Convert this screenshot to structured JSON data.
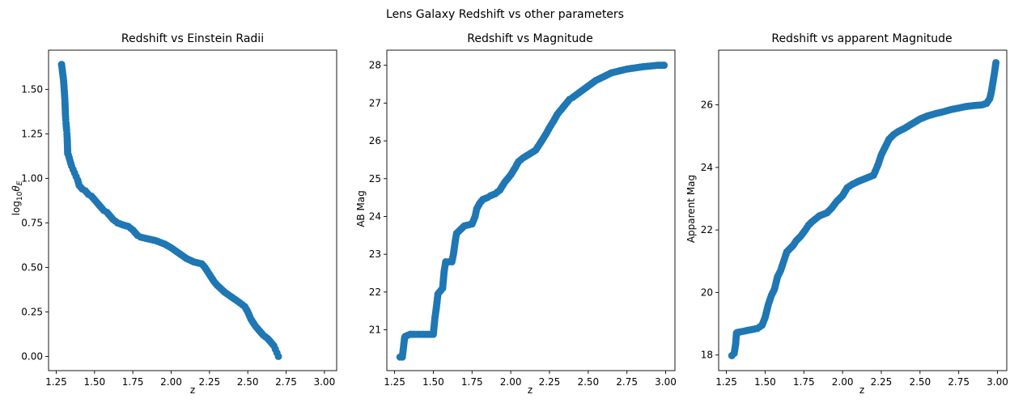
{
  "figure": {
    "suptitle": "Lens Galaxy Redshift vs other parameters",
    "marker_color": "#1f77b4"
  },
  "chart_data": [
    {
      "type": "scatter",
      "title": "Redshift vs Einstein Radii",
      "xlabel": "z",
      "ylabel": "log10θE",
      "ylabel_parts": {
        "base": "log",
        "sub": "10",
        "sym": "θ",
        "symsub": "E"
      },
      "xlim": [
        1.2,
        3.08
      ],
      "ylim": [
        -0.08,
        1.72
      ],
      "xticks": [
        "1.25",
        "1.50",
        "1.75",
        "2.00",
        "2.25",
        "2.50",
        "2.75",
        "3.00"
      ],
      "yticks": [
        "0.00",
        "0.25",
        "0.50",
        "0.75",
        "1.00",
        "1.25",
        "1.50"
      ],
      "grid": false,
      "x": [
        1.285,
        1.298,
        1.306,
        1.308,
        1.31,
        1.312,
        1.314,
        1.318,
        1.32,
        1.322,
        1.325,
        1.33,
        1.34,
        1.35,
        1.36,
        1.37,
        1.38,
        1.39,
        1.4,
        1.42,
        1.44,
        1.46,
        1.48,
        1.5,
        1.52,
        1.54,
        1.56,
        1.58,
        1.6,
        1.62,
        1.65,
        1.68,
        1.72,
        1.75,
        1.78,
        1.8,
        1.85,
        1.9,
        1.93,
        1.96,
        2.0,
        2.05,
        2.1,
        2.15,
        2.2,
        2.22,
        2.25,
        2.28,
        2.3,
        2.35,
        2.4,
        2.45,
        2.48,
        2.5,
        2.52,
        2.55,
        2.58,
        2.6,
        2.63,
        2.65,
        2.67,
        2.68,
        2.69,
        2.7
      ],
      "y": [
        1.64,
        1.55,
        1.45,
        1.41,
        1.36,
        1.33,
        1.31,
        1.27,
        1.25,
        1.22,
        1.14,
        1.13,
        1.1,
        1.07,
        1.05,
        1.03,
        1.01,
        0.99,
        0.96,
        0.94,
        0.93,
        0.91,
        0.9,
        0.88,
        0.86,
        0.84,
        0.82,
        0.81,
        0.79,
        0.77,
        0.75,
        0.74,
        0.73,
        0.71,
        0.68,
        0.67,
        0.66,
        0.65,
        0.64,
        0.63,
        0.61,
        0.58,
        0.55,
        0.53,
        0.52,
        0.5,
        0.46,
        0.42,
        0.4,
        0.36,
        0.33,
        0.3,
        0.28,
        0.25,
        0.21,
        0.17,
        0.14,
        0.12,
        0.1,
        0.08,
        0.06,
        0.04,
        0.02,
        0.0
      ]
    },
    {
      "type": "scatter",
      "title": "Redshift vs Magnitude",
      "xlabel": "z",
      "ylabel": "AB Mag",
      "xlim": [
        1.2,
        3.06
      ],
      "ylim": [
        19.92,
        28.4
      ],
      "xticks": [
        "1.25",
        "1.50",
        "1.75",
        "2.00",
        "2.25",
        "2.50",
        "2.75",
        "3.00"
      ],
      "yticks": [
        "21",
        "22",
        "23",
        "24",
        "25",
        "26",
        "27",
        "28"
      ],
      "grid": false,
      "x": [
        1.285,
        1.3,
        1.315,
        1.32,
        1.35,
        1.38,
        1.4,
        1.45,
        1.5,
        1.51,
        1.52,
        1.53,
        1.54,
        1.55,
        1.56,
        1.57,
        1.58,
        1.6,
        1.62,
        1.63,
        1.64,
        1.65,
        1.7,
        1.75,
        1.77,
        1.78,
        1.8,
        1.82,
        1.85,
        1.87,
        1.9,
        1.93,
        1.96,
        2.0,
        2.03,
        2.05,
        2.08,
        2.12,
        2.16,
        2.2,
        2.23,
        2.25,
        2.28,
        2.3,
        2.33,
        2.35,
        2.38,
        2.4,
        2.45,
        2.5,
        2.55,
        2.6,
        2.65,
        2.7,
        2.75,
        2.8,
        2.85,
        2.9,
        2.95,
        2.99
      ],
      "y": [
        20.28,
        20.28,
        20.8,
        20.83,
        20.88,
        20.88,
        20.88,
        20.88,
        20.88,
        21.3,
        21.6,
        21.95,
        22.0,
        22.05,
        22.1,
        22.55,
        22.8,
        22.8,
        22.8,
        23.0,
        23.3,
        23.55,
        23.75,
        23.8,
        24.0,
        24.2,
        24.35,
        24.45,
        24.5,
        24.55,
        24.6,
        24.7,
        24.9,
        25.1,
        25.3,
        25.45,
        25.55,
        25.65,
        25.75,
        26.0,
        26.2,
        26.35,
        26.55,
        26.7,
        26.85,
        26.95,
        27.1,
        27.15,
        27.3,
        27.45,
        27.6,
        27.7,
        27.8,
        27.85,
        27.9,
        27.93,
        27.96,
        27.98,
        28.0,
        28.0
      ]
    },
    {
      "type": "scatter",
      "title": "Redshift vs apparent Magnitude",
      "xlabel": "z",
      "ylabel": "Apparent Mag",
      "xlim": [
        1.2,
        3.06
      ],
      "ylim": [
        17.5,
        27.75
      ],
      "xticks": [
        "1.25",
        "1.50",
        "1.75",
        "2.00",
        "2.25",
        "2.50",
        "2.75",
        "3.00"
      ],
      "yticks": [
        "18",
        "20",
        "22",
        "24",
        "26"
      ],
      "grid": false,
      "x": [
        1.285,
        1.3,
        1.31,
        1.315,
        1.32,
        1.35,
        1.4,
        1.45,
        1.48,
        1.5,
        1.52,
        1.54,
        1.56,
        1.58,
        1.6,
        1.62,
        1.64,
        1.66,
        1.68,
        1.7,
        1.73,
        1.76,
        1.78,
        1.8,
        1.85,
        1.9,
        1.93,
        1.96,
        2.0,
        2.03,
        2.06,
        2.1,
        2.15,
        2.2,
        2.23,
        2.25,
        2.28,
        2.3,
        2.33,
        2.36,
        2.4,
        2.45,
        2.5,
        2.55,
        2.6,
        2.65,
        2.7,
        2.75,
        2.8,
        2.85,
        2.9,
        2.93,
        2.95,
        2.96,
        2.97,
        2.98,
        2.99
      ],
      "y": [
        17.98,
        18.05,
        18.35,
        18.7,
        18.72,
        18.75,
        18.8,
        18.85,
        18.95,
        19.2,
        19.6,
        19.9,
        20.1,
        20.5,
        20.7,
        21.0,
        21.3,
        21.4,
        21.5,
        21.65,
        21.8,
        22.0,
        22.15,
        22.25,
        22.45,
        22.55,
        22.7,
        22.9,
        23.1,
        23.35,
        23.45,
        23.55,
        23.65,
        23.75,
        24.1,
        24.4,
        24.7,
        24.9,
        25.05,
        25.15,
        25.25,
        25.4,
        25.55,
        25.65,
        25.72,
        25.78,
        25.85,
        25.9,
        25.95,
        25.98,
        26.0,
        26.05,
        26.2,
        26.4,
        26.7,
        27.0,
        27.35
      ]
    }
  ]
}
